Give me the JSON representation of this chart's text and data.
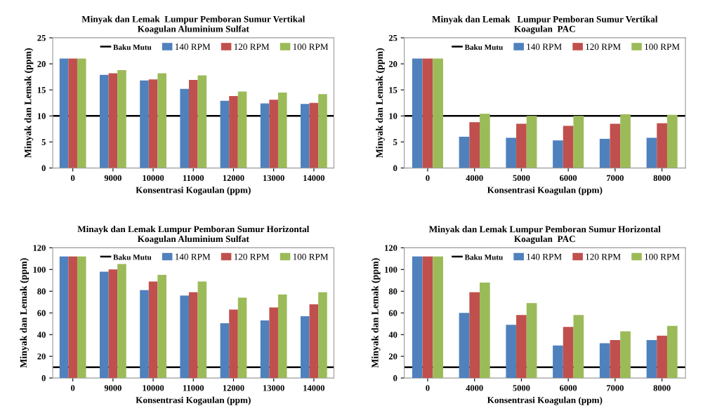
{
  "chart_data": [
    {
      "type": "bar",
      "title": "Minyak dan Lemak  Lumpur Pemboran Sumur Vertikal\nKoagulan Aluminium Sulfat",
      "xlabel": "Konsentrasi Kogaulan (ppm)",
      "ylabel": "Minyak dan Lemak (ppm)",
      "categories": [
        "0",
        "9000",
        "10000",
        "11000",
        "12000",
        "13000",
        "14000"
      ],
      "ylim": [
        0,
        25
      ],
      "yticks": [
        0,
        5,
        10,
        15,
        20,
        25
      ],
      "legend": "top right",
      "ref_lines": [
        {
          "axis": "y",
          "value": 10,
          "label": "Baku Mutu",
          "color": "#000000"
        }
      ],
      "series": [
        {
          "name": "140 RPM",
          "color": "#4f81bd",
          "values": [
            21,
            17.9,
            16.8,
            15.2,
            12.9,
            12.4,
            12.3
          ]
        },
        {
          "name": "120 RPM",
          "color": "#c0504d",
          "values": [
            21,
            18.2,
            17.0,
            16.9,
            13.8,
            13.1,
            12.5
          ]
        },
        {
          "name": "100 RPM",
          "color": "#9bbb59",
          "values": [
            21,
            18.8,
            18.2,
            17.8,
            14.7,
            14.5,
            14.2
          ]
        }
      ]
    },
    {
      "type": "bar",
      "title": "Minyak dan Lemak   Lumpur Pemboran Sumur Vertikal\nKoagulan  PAC",
      "xlabel": "Konsentrasi Koagulan (ppm)",
      "ylabel": "Minyak dan Lemak (ppm)",
      "categories": [
        "0",
        "4000",
        "5000",
        "6000",
        "7000",
        "8000"
      ],
      "ylim": [
        0,
        25
      ],
      "yticks": [
        0,
        5,
        10,
        15,
        20,
        25
      ],
      "legend": "top right",
      "ref_lines": [
        {
          "axis": "y",
          "value": 10,
          "label": "Baku Mutu",
          "color": "#000000"
        }
      ],
      "series": [
        {
          "name": "140 RPM",
          "color": "#4f81bd",
          "values": [
            21,
            6.0,
            5.8,
            5.3,
            5.6,
            5.8
          ]
        },
        {
          "name": "120 RPM",
          "color": "#c0504d",
          "values": [
            21,
            8.8,
            8.5,
            8.1,
            8.5,
            8.6
          ]
        },
        {
          "name": "100 RPM",
          "color": "#9bbb59",
          "values": [
            21,
            10.4,
            10.0,
            10.0,
            10.3,
            10.2
          ]
        }
      ]
    },
    {
      "type": "bar",
      "title": "Minayk dan Lemak Lumpur Pemboran Sumur Horizontal\nKoagulan Aluminium Sulfat",
      "xlabel": "Konsentrasi Kogaulan (ppm)",
      "ylabel": "Minyak dan Lemak (ppm)",
      "categories": [
        "0",
        "9000",
        "10000",
        "11000",
        "12000",
        "13000",
        "14000"
      ],
      "ylim": [
        0,
        120
      ],
      "yticks": [
        0,
        20,
        40,
        60,
        80,
        100,
        120
      ],
      "legend": "top right",
      "ref_lines": [
        {
          "axis": "y",
          "value": 10,
          "label": "Baku Mutu",
          "color": "#000000"
        }
      ],
      "series": [
        {
          "name": "140 RPM",
          "color": "#4f81bd",
          "values": [
            112,
            98,
            81,
            76,
            50.5,
            53,
            57
          ]
        },
        {
          "name": "120 RPM",
          "color": "#c0504d",
          "values": [
            112,
            100,
            89,
            79,
            63,
            65,
            68
          ]
        },
        {
          "name": "100 RPM",
          "color": "#9bbb59",
          "values": [
            112,
            105,
            95,
            89,
            74,
            77,
            79
          ]
        }
      ]
    },
    {
      "type": "bar",
      "title": "Minyak dan Lemak Lumpur Pemboran Sumur Horizontal\nKoagulan  PAC",
      "xlabel": "Konsentrasi Koagulan (ppm)",
      "ylabel": "Minyak dan Lemak (ppm)",
      "categories": [
        "0",
        "4000",
        "5000",
        "6000",
        "7000",
        "8000"
      ],
      "ylim": [
        0,
        120
      ],
      "yticks": [
        0,
        20,
        40,
        60,
        80,
        100,
        120
      ],
      "legend": "top right",
      "ref_lines": [
        {
          "axis": "y",
          "value": 10,
          "label": "Baku Mutu",
          "color": "#000000"
        }
      ],
      "series": [
        {
          "name": "140 RPM",
          "color": "#4f81bd",
          "values": [
            112,
            60,
            49,
            30,
            32,
            35
          ]
        },
        {
          "name": "120 RPM",
          "color": "#c0504d",
          "values": [
            112,
            79,
            58,
            47,
            35,
            39
          ]
        },
        {
          "name": "100 RPM",
          "color": "#9bbb59",
          "values": [
            112,
            88,
            69,
            58,
            43,
            48
          ]
        }
      ]
    }
  ]
}
